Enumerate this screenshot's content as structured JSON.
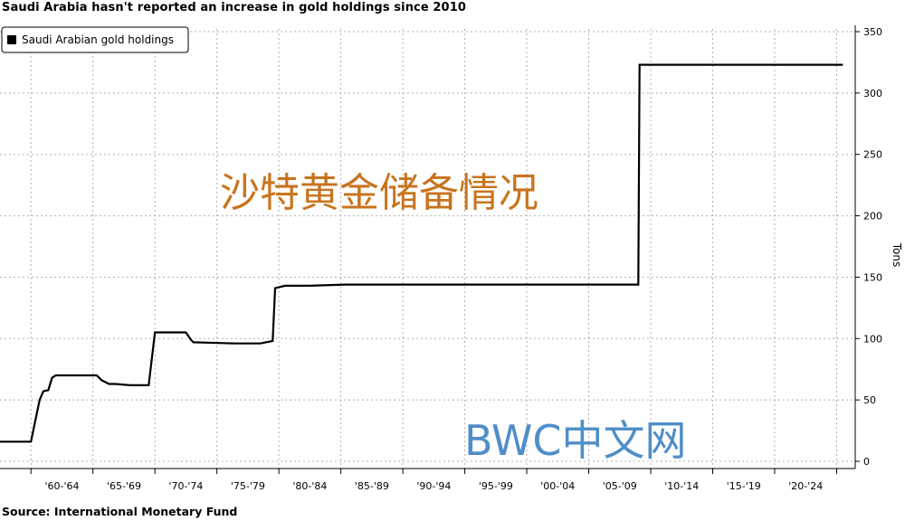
{
  "title": "Saudi Arabia hasn't reported an increase in gold holdings since 2010",
  "source": "Source: International Monetary Fund",
  "overlay_text": {
    "chinese_caption": "沙特黄金储备情况",
    "watermark": "BWC中文网"
  },
  "colors": {
    "line": "#000000",
    "grid": "#b0b0b0",
    "caption": "#c8741e",
    "watermark": "#4f8ec7"
  },
  "chart_data": {
    "type": "line",
    "title": "Saudi Arabia hasn't reported an increase in gold holdings since 2010",
    "xlabel": "",
    "ylabel": "Tons",
    "xlim": [
      1957,
      2026
    ],
    "ylim": [
      0,
      350
    ],
    "y_axis_side": "right",
    "grid": true,
    "legend": {
      "position": "top-left",
      "entries": [
        "Saudi Arabian gold holdings"
      ]
    },
    "x_tick_labels": [
      "'60-'64",
      "'65-'69",
      "'70-'74",
      "'75-'79",
      "'80-'84",
      "'85-'89",
      "'90-'94",
      "'95-'99",
      "'00-'04",
      "'05-'09",
      "'10-'14",
      "'15-'19",
      "'20-'24"
    ],
    "y_ticks": [
      0,
      50,
      100,
      150,
      200,
      250,
      300,
      350
    ],
    "series": [
      {
        "name": "Saudi Arabian gold holdings",
        "points": [
          [
            1957.0,
            16
          ],
          [
            1959.5,
            16
          ],
          [
            1960.2,
            50
          ],
          [
            1960.5,
            57
          ],
          [
            1960.9,
            58
          ],
          [
            1961.2,
            68
          ],
          [
            1961.5,
            70
          ],
          [
            1964.8,
            70
          ],
          [
            1965.2,
            66
          ],
          [
            1965.8,
            63
          ],
          [
            1966.3,
            63
          ],
          [
            1967.5,
            62
          ],
          [
            1968.5,
            62
          ],
          [
            1969.0,
            62
          ],
          [
            1969.5,
            105
          ],
          [
            1972.0,
            105
          ],
          [
            1972.4,
            99
          ],
          [
            1972.6,
            97
          ],
          [
            1976.0,
            96
          ],
          [
            1978.0,
            96
          ],
          [
            1979.0,
            98
          ],
          [
            1979.2,
            141
          ],
          [
            1980.0,
            143
          ],
          [
            1982.0,
            143
          ],
          [
            1985.0,
            144
          ],
          [
            2008.5,
            144
          ],
          [
            2008.6,
            323
          ],
          [
            2025.0,
            323
          ]
        ]
      }
    ]
  }
}
